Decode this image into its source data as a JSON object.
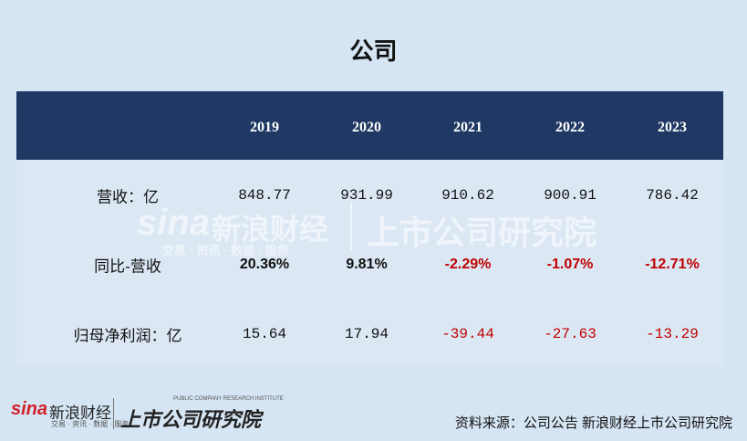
{
  "header": {
    "title": "公司"
  },
  "table": {
    "years": [
      "2019",
      "2020",
      "2021",
      "2022",
      "2023"
    ],
    "rows": [
      {
        "label": "营收：亿",
        "cells": [
          "848.77",
          "931.99",
          "910.62",
          "900.91",
          "786.42"
        ]
      },
      {
        "label": "同比-营收",
        "cells": [
          "20.36%",
          "9.81%",
          "-2.29%",
          "-1.07%",
          "-12.71%"
        ]
      },
      {
        "label": "归母净利润：亿",
        "cells": [
          "15.64",
          "17.94",
          "-39.44",
          "-27.63",
          "-13.29"
        ]
      }
    ]
  },
  "watermark": {
    "brand": "sina",
    "name": "新浪财经",
    "tagline": "交易 · 资讯 · 数据 · 服务",
    "institute": "上市公司研究院"
  },
  "footer": {
    "brand": "sina",
    "name": "新浪财经",
    "tagline": "交易 · 资讯 · 数据 · 服务",
    "institute": "上市公司研究院",
    "institute_en": "PUBLIC COMPANY RESEARCH INSTITUTE",
    "source": "资料来源：公司公告 新浪财经上市公司研究院"
  }
}
